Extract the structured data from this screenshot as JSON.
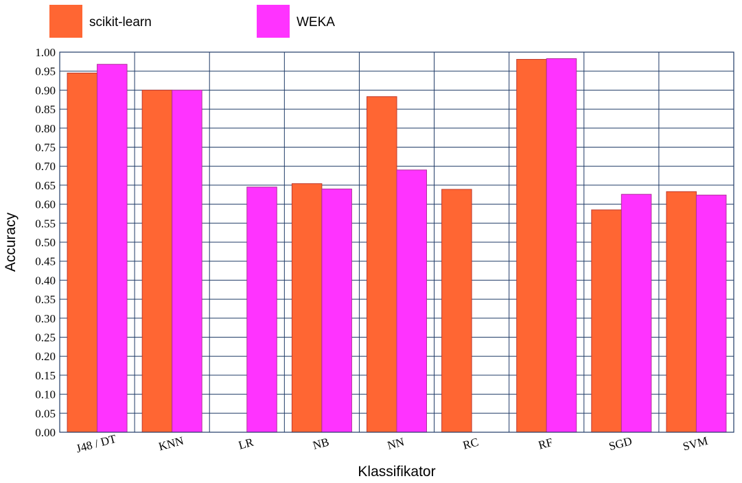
{
  "chart_data": {
    "type": "bar",
    "title": "",
    "xlabel": "Klassifikator",
    "ylabel": "Accuracy",
    "ylim": [
      0,
      1.0
    ],
    "ytick_step": 0.05,
    "grid": true,
    "legend_position": "top-left",
    "categories": [
      "J48 / DT",
      "KNN",
      "LR",
      "NB",
      "NN",
      "RC",
      "RF",
      "SGD",
      "SVM"
    ],
    "series": [
      {
        "name": "scikit-learn",
        "color": "#ff6633",
        "values": [
          0.945,
          0.9,
          null,
          0.654,
          0.883,
          0.639,
          0.981,
          0.585,
          0.633
        ]
      },
      {
        "name": "WEKA",
        "color": "#ff33ff",
        "values": [
          0.968,
          0.9,
          0.645,
          0.64,
          0.69,
          null,
          0.983,
          0.626,
          0.624
        ]
      }
    ]
  }
}
